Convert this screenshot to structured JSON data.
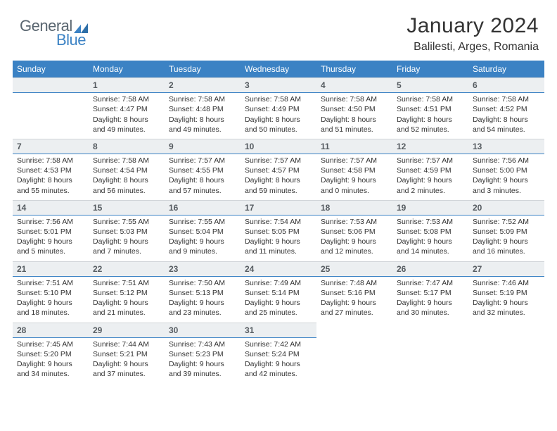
{
  "logo": {
    "general": "General",
    "blue": "Blue",
    "accent_color": "#3b82c4",
    "text_color": "#5a6670"
  },
  "header": {
    "month_year": "January 2024",
    "location": "Balilesti, Arges, Romania"
  },
  "colors": {
    "header_bg": "#3b82c4",
    "header_text": "#ffffff",
    "daynum_bg": "#eceff1",
    "daynum_border_bottom": "#3b82c4",
    "body_text": "#333333"
  },
  "days_of_week": [
    "Sunday",
    "Monday",
    "Tuesday",
    "Wednesday",
    "Thursday",
    "Friday",
    "Saturday"
  ],
  "weeks": [
    [
      {
        "n": "",
        "sr": "",
        "ss": "",
        "dl": ""
      },
      {
        "n": "1",
        "sr": "Sunrise: 7:58 AM",
        "ss": "Sunset: 4:47 PM",
        "dl": "Daylight: 8 hours and 49 minutes."
      },
      {
        "n": "2",
        "sr": "Sunrise: 7:58 AM",
        "ss": "Sunset: 4:48 PM",
        "dl": "Daylight: 8 hours and 49 minutes."
      },
      {
        "n": "3",
        "sr": "Sunrise: 7:58 AM",
        "ss": "Sunset: 4:49 PM",
        "dl": "Daylight: 8 hours and 50 minutes."
      },
      {
        "n": "4",
        "sr": "Sunrise: 7:58 AM",
        "ss": "Sunset: 4:50 PM",
        "dl": "Daylight: 8 hours and 51 minutes."
      },
      {
        "n": "5",
        "sr": "Sunrise: 7:58 AM",
        "ss": "Sunset: 4:51 PM",
        "dl": "Daylight: 8 hours and 52 minutes."
      },
      {
        "n": "6",
        "sr": "Sunrise: 7:58 AM",
        "ss": "Sunset: 4:52 PM",
        "dl": "Daylight: 8 hours and 54 minutes."
      }
    ],
    [
      {
        "n": "7",
        "sr": "Sunrise: 7:58 AM",
        "ss": "Sunset: 4:53 PM",
        "dl": "Daylight: 8 hours and 55 minutes."
      },
      {
        "n": "8",
        "sr": "Sunrise: 7:58 AM",
        "ss": "Sunset: 4:54 PM",
        "dl": "Daylight: 8 hours and 56 minutes."
      },
      {
        "n": "9",
        "sr": "Sunrise: 7:57 AM",
        "ss": "Sunset: 4:55 PM",
        "dl": "Daylight: 8 hours and 57 minutes."
      },
      {
        "n": "10",
        "sr": "Sunrise: 7:57 AM",
        "ss": "Sunset: 4:57 PM",
        "dl": "Daylight: 8 hours and 59 minutes."
      },
      {
        "n": "11",
        "sr": "Sunrise: 7:57 AM",
        "ss": "Sunset: 4:58 PM",
        "dl": "Daylight: 9 hours and 0 minutes."
      },
      {
        "n": "12",
        "sr": "Sunrise: 7:57 AM",
        "ss": "Sunset: 4:59 PM",
        "dl": "Daylight: 9 hours and 2 minutes."
      },
      {
        "n": "13",
        "sr": "Sunrise: 7:56 AM",
        "ss": "Sunset: 5:00 PM",
        "dl": "Daylight: 9 hours and 3 minutes."
      }
    ],
    [
      {
        "n": "14",
        "sr": "Sunrise: 7:56 AM",
        "ss": "Sunset: 5:01 PM",
        "dl": "Daylight: 9 hours and 5 minutes."
      },
      {
        "n": "15",
        "sr": "Sunrise: 7:55 AM",
        "ss": "Sunset: 5:03 PM",
        "dl": "Daylight: 9 hours and 7 minutes."
      },
      {
        "n": "16",
        "sr": "Sunrise: 7:55 AM",
        "ss": "Sunset: 5:04 PM",
        "dl": "Daylight: 9 hours and 9 minutes."
      },
      {
        "n": "17",
        "sr": "Sunrise: 7:54 AM",
        "ss": "Sunset: 5:05 PM",
        "dl": "Daylight: 9 hours and 11 minutes."
      },
      {
        "n": "18",
        "sr": "Sunrise: 7:53 AM",
        "ss": "Sunset: 5:06 PM",
        "dl": "Daylight: 9 hours and 12 minutes."
      },
      {
        "n": "19",
        "sr": "Sunrise: 7:53 AM",
        "ss": "Sunset: 5:08 PM",
        "dl": "Daylight: 9 hours and 14 minutes."
      },
      {
        "n": "20",
        "sr": "Sunrise: 7:52 AM",
        "ss": "Sunset: 5:09 PM",
        "dl": "Daylight: 9 hours and 16 minutes."
      }
    ],
    [
      {
        "n": "21",
        "sr": "Sunrise: 7:51 AM",
        "ss": "Sunset: 5:10 PM",
        "dl": "Daylight: 9 hours and 18 minutes."
      },
      {
        "n": "22",
        "sr": "Sunrise: 7:51 AM",
        "ss": "Sunset: 5:12 PM",
        "dl": "Daylight: 9 hours and 21 minutes."
      },
      {
        "n": "23",
        "sr": "Sunrise: 7:50 AM",
        "ss": "Sunset: 5:13 PM",
        "dl": "Daylight: 9 hours and 23 minutes."
      },
      {
        "n": "24",
        "sr": "Sunrise: 7:49 AM",
        "ss": "Sunset: 5:14 PM",
        "dl": "Daylight: 9 hours and 25 minutes."
      },
      {
        "n": "25",
        "sr": "Sunrise: 7:48 AM",
        "ss": "Sunset: 5:16 PM",
        "dl": "Daylight: 9 hours and 27 minutes."
      },
      {
        "n": "26",
        "sr": "Sunrise: 7:47 AM",
        "ss": "Sunset: 5:17 PM",
        "dl": "Daylight: 9 hours and 30 minutes."
      },
      {
        "n": "27",
        "sr": "Sunrise: 7:46 AM",
        "ss": "Sunset: 5:19 PM",
        "dl": "Daylight: 9 hours and 32 minutes."
      }
    ],
    [
      {
        "n": "28",
        "sr": "Sunrise: 7:45 AM",
        "ss": "Sunset: 5:20 PM",
        "dl": "Daylight: 9 hours and 34 minutes."
      },
      {
        "n": "29",
        "sr": "Sunrise: 7:44 AM",
        "ss": "Sunset: 5:21 PM",
        "dl": "Daylight: 9 hours and 37 minutes."
      },
      {
        "n": "30",
        "sr": "Sunrise: 7:43 AM",
        "ss": "Sunset: 5:23 PM",
        "dl": "Daylight: 9 hours and 39 minutes."
      },
      {
        "n": "31",
        "sr": "Sunrise: 7:42 AM",
        "ss": "Sunset: 5:24 PM",
        "dl": "Daylight: 9 hours and 42 minutes."
      },
      {
        "n": "",
        "sr": "",
        "ss": "",
        "dl": ""
      },
      {
        "n": "",
        "sr": "",
        "ss": "",
        "dl": ""
      },
      {
        "n": "",
        "sr": "",
        "ss": "",
        "dl": ""
      }
    ]
  ]
}
